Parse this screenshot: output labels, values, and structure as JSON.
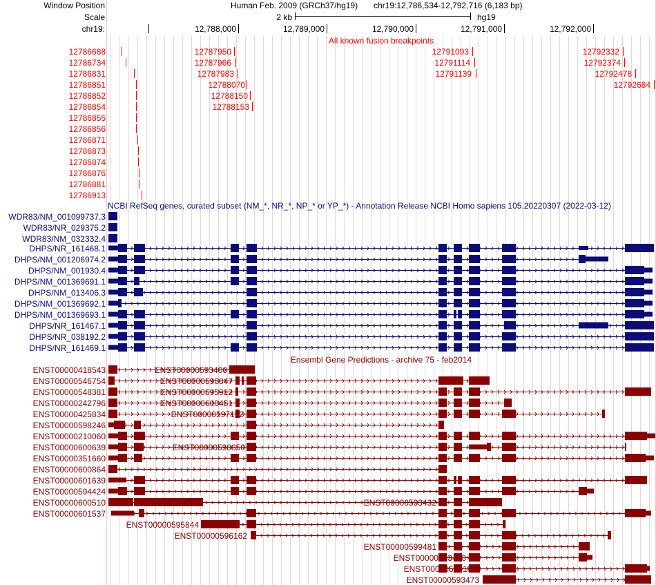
{
  "header": {
    "window_position_label": "Window Position",
    "scale_label": "Scale",
    "chrom_label": "chr19:",
    "assembly": "Human Feb. 2009 (GRCh37/hg19)",
    "position": "chr19:12,786,534-12,792,716 (6,183 bp)",
    "scale_text": "2 kb",
    "db": "hg19",
    "ruler_ticks": [
      "12,788,000",
      "12,789,000",
      "12,790,000",
      "12,791,000",
      "12,792,000"
    ]
  },
  "colors": {
    "fusion": "#ff0000",
    "refseq": "#0c0c78",
    "ensembl": "#8b0000",
    "grid": "#e8d6d6",
    "border": "#f0c8c8"
  },
  "fusion_track": {
    "title": "All known fusion breakpoints",
    "breakpoints": [
      "12786688",
      "12786734",
      "12786831",
      "12786851",
      "12786852",
      "12786854",
      "12786855",
      "12786856",
      "12786871",
      "12786873",
      "12786874",
      "12786876",
      "12786881",
      "12786913",
      "12787950",
      "12787966",
      "12787983",
      "12788070",
      "12788150",
      "12788153",
      "12791093",
      "12791114",
      "12791139",
      "12792332",
      "12792374",
      "12792478",
      "12792684"
    ]
  },
  "refseq_track": {
    "title": "NCBI RefSeq genes, curated subset (NM_*, NR_*, NP_* or YP_*) - Annotation Release NCBI Homo sapiens 105.20220307 (2022-03-12)",
    "items": [
      "WDR83/NM_001099737.3",
      "WDR83/NR_029375.2",
      "WDR83/NM_032332.4",
      "DHPS/NR_161468.1",
      "DHPS/NM_001206974.2",
      "DHPS/NM_001930.4",
      "DHPS/NM_001369691.1",
      "DHPS/NM_013406.3",
      "DHPS/NM_001369692.1",
      "DHPS/NM_001369693.1",
      "DHPS/NR_161467.1",
      "DHPS/NR_038192.2",
      "DHPS/NR_161469.1"
    ]
  },
  "ensembl_track": {
    "title": "Ensembl Gene Predictions - archive 75 - feb2014",
    "items": [
      "ENST00000418543",
      "ENST00000546754",
      "ENST00000548381",
      "ENST00000242796",
      "ENST00000425834",
      "ENST00000598246",
      "ENST00000210060",
      "ENST00000600639",
      "ENST00000351660",
      "ENST00000600864",
      "ENST00000601639",
      "ENST00000594424",
      "ENST00000600510",
      "ENST00000601537",
      "ENST00000593400",
      "ENST00000596847",
      "ENST00000595912",
      "ENST00000600451",
      "ENST00000597152",
      "ENST00000598850",
      "ENST00000593432",
      "ENST00000595844",
      "ENST00000596162",
      "ENST00000599481",
      "ENST00000593423",
      "ENST00000595100",
      "ENST00000593473"
    ]
  }
}
